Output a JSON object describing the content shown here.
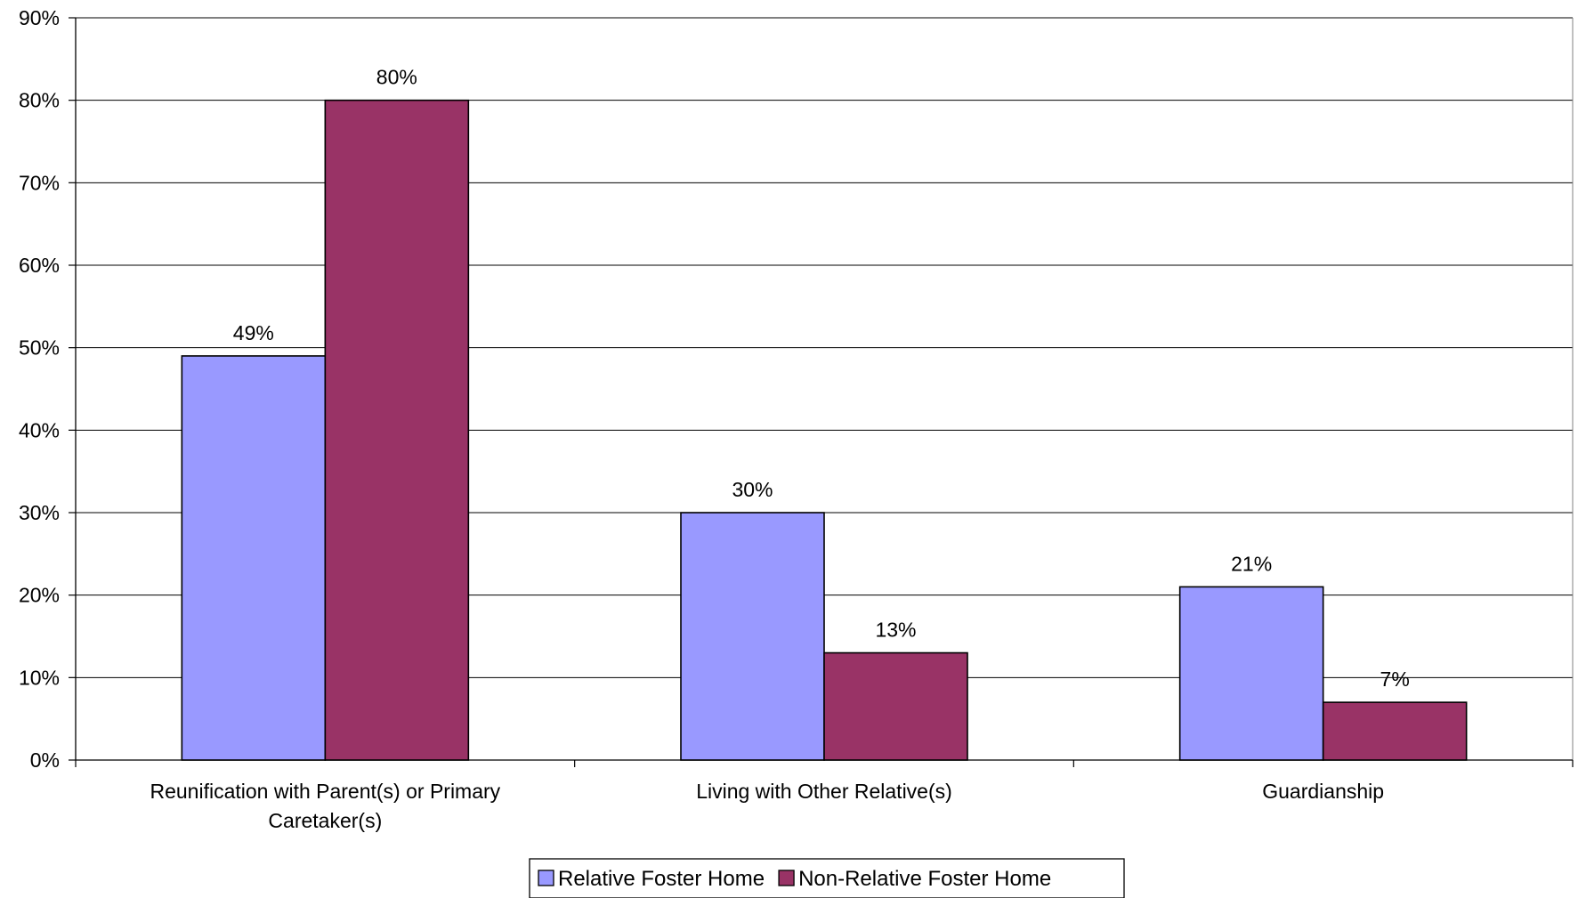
{
  "chart_data": {
    "type": "bar",
    "categories": [
      [
        "Reunification with Parent(s) or Primary",
        "Caretaker(s)"
      ],
      [
        "Living with Other Relative(s)"
      ],
      [
        "Guardianship"
      ]
    ],
    "series": [
      {
        "name": "Relative Foster Home",
        "values": [
          49,
          30,
          21
        ],
        "labels": [
          "49%",
          "30%",
          "21%"
        ],
        "color": "#9999FF"
      },
      {
        "name": "Non-Relative Foster  Home",
        "values": [
          80,
          13,
          7
        ],
        "labels": [
          "80%",
          "13%",
          "7%"
        ],
        "color": "#993366"
      }
    ],
    "ylim": [
      0,
      90
    ],
    "yticks": [
      0,
      10,
      20,
      30,
      40,
      50,
      60,
      70,
      80,
      90
    ],
    "ytick_labels": [
      "0%",
      "10%",
      "20%",
      "30%",
      "40%",
      "50%",
      "60%",
      "70%",
      "80%",
      "90%"
    ],
    "grid": true,
    "legend_position": "bottom-center",
    "title": "",
    "xlabel": "",
    "ylabel": ""
  }
}
